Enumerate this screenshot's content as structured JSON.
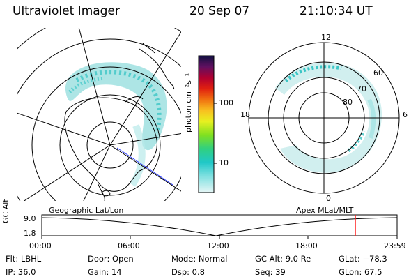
{
  "header": {
    "instrument": "Ultraviolet Imager",
    "date": "20 Sep 07",
    "time": "21:10:34 UT"
  },
  "left_map": {
    "label": "Geographic Lat/Lon"
  },
  "right_map": {
    "label": "Apex MLat/MLT",
    "mlt_labels": {
      "top": "12",
      "bottom": "0",
      "left": "18",
      "right": "6"
    },
    "lat_labels": [
      "60",
      "70",
      "80"
    ]
  },
  "colorbar": {
    "unit_label": "photon cm⁻²s⁻¹",
    "ticks": [
      "100",
      "10"
    ]
  },
  "timeline": {
    "y_axis_title": "GC Alt",
    "y_ticks": [
      "9.0",
      "1.8"
    ],
    "x_ticks": [
      "00:00",
      "06:00",
      "12:00",
      "18:00",
      "23:59"
    ],
    "marker_time": "21:10"
  },
  "info": {
    "flt": "Flt:  LBHL",
    "ip": "IP:  36.0",
    "door": "Door:  Open",
    "gain": "Gain:  14",
    "mode": "Mode:  Normal",
    "dsp": "Dsp:      0.8",
    "gcalt": "GC Alt:  9.0 Re",
    "seq": "Seq:  39",
    "glat": "GLat:  −78.3",
    "glon": "GLon:   67.5"
  },
  "colors": {
    "aurora": "#7fd8d8",
    "aurora_core": "#3cc6c6",
    "marker": "#ff2020",
    "track": "#2b3cff"
  }
}
